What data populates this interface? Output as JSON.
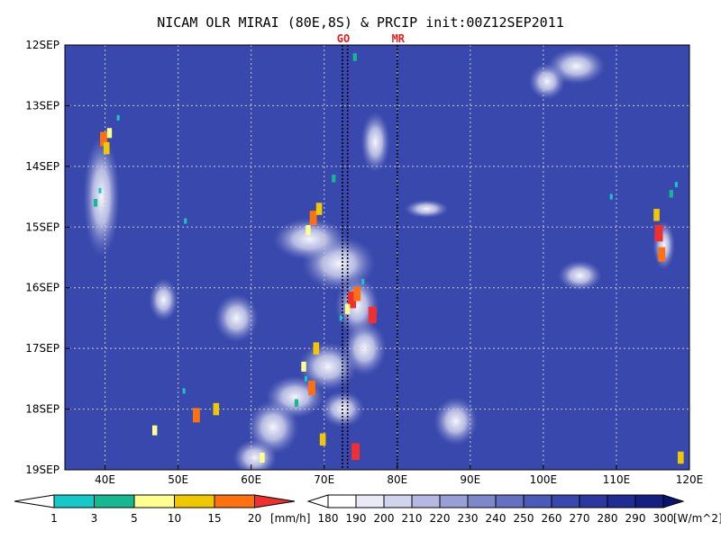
{
  "chart_data": {
    "type": "heatmap",
    "title": "NICAM OLR MIRAI (80E,8S) & PRCIP init:00Z12SEP2011",
    "x_ticks": [
      "40E",
      "50E",
      "60E",
      "70E",
      "80E",
      "90E",
      "100E",
      "110E",
      "120E"
    ],
    "x_tick_values": [
      40,
      50,
      60,
      70,
      80,
      90,
      100,
      110,
      120
    ],
    "xlim": [
      34.5,
      120
    ],
    "y_ticks": [
      "12SEP",
      "13SEP",
      "14SEP",
      "15SEP",
      "16SEP",
      "17SEP",
      "18SEP",
      "19SEP"
    ],
    "y_tick_values": [
      0,
      1,
      2,
      3,
      4,
      5,
      6,
      7
    ],
    "ylim": [
      0,
      7
    ],
    "grid": true,
    "markers": [
      {
        "label": "GO",
        "lon": 72.5
      },
      {
        "label": "",
        "lon": 73.2
      },
      {
        "label": "MR",
        "lon": 80.0
      }
    ],
    "precip_colorbar": {
      "labels": [
        "1",
        "3",
        "5",
        "10",
        "15",
        "20"
      ],
      "unit": "[mm/h]",
      "colors": [
        "#16c8c8",
        "#16b890",
        "#ffff90",
        "#f0c800",
        "#ff7010",
        "#f03030"
      ]
    },
    "olr_colorbar": {
      "labels": [
        "180",
        "190",
        "200",
        "210",
        "220",
        "230",
        "240",
        "250",
        "260",
        "270",
        "280",
        "290",
        "300"
      ],
      "unit": "[W/m^2]",
      "colors": [
        "#ffffff",
        "#eaeaf6",
        "#d2d4ee",
        "#b4b8e2",
        "#989ed6",
        "#7e86cc",
        "#6470c2",
        "#4a5ab8",
        "#3848ac",
        "#2a38a0",
        "#1e2c94",
        "#141f82",
        "#0a1470"
      ]
    },
    "clouds": [
      {
        "lon": 72.0,
        "day": 3.6,
        "rx": 5,
        "ry": 0.45
      },
      {
        "lon": 68.0,
        "day": 3.2,
        "rx": 5,
        "ry": 0.35
      },
      {
        "lon": 74.5,
        "day": 4.3,
        "rx": 3,
        "ry": 0.5
      },
      {
        "lon": 75.5,
        "day": 5.0,
        "rx": 3,
        "ry": 0.45
      },
      {
        "lon": 70.5,
        "day": 5.3,
        "rx": 4,
        "ry": 0.4
      },
      {
        "lon": 66.0,
        "day": 5.8,
        "rx": 4,
        "ry": 0.35
      },
      {
        "lon": 63.0,
        "day": 6.3,
        "rx": 3.5,
        "ry": 0.45
      },
      {
        "lon": 60.5,
        "day": 6.8,
        "rx": 3,
        "ry": 0.3
      },
      {
        "lon": 72.5,
        "day": 6.0,
        "rx": 3,
        "ry": 0.3
      },
      {
        "lon": 84.0,
        "day": 2.7,
        "rx": 3,
        "ry": 0.15
      },
      {
        "lon": 104.5,
        "day": 0.35,
        "rx": 4,
        "ry": 0.3
      },
      {
        "lon": 100.5,
        "day": 0.6,
        "rx": 2.5,
        "ry": 0.3
      },
      {
        "lon": 77.0,
        "day": 1.6,
        "rx": 2,
        "ry": 0.5
      },
      {
        "lon": 58.0,
        "day": 4.5,
        "rx": 3,
        "ry": 0.4
      },
      {
        "lon": 48.0,
        "day": 4.2,
        "rx": 2,
        "ry": 0.35
      },
      {
        "lon": 88.0,
        "day": 6.2,
        "rx": 3,
        "ry": 0.4
      },
      {
        "lon": 39.5,
        "day": 2.5,
        "rx": 2.5,
        "ry": 1.0
      },
      {
        "lon": 105.0,
        "day": 3.8,
        "rx": 3,
        "ry": 0.25
      },
      {
        "lon": 116.5,
        "day": 3.3,
        "rx": 1.5,
        "ry": 0.4
      }
    ],
    "precip": [
      {
        "lon": 39.8,
        "day": 1.55,
        "level": 4
      },
      {
        "lon": 40.2,
        "day": 1.7,
        "level": 3
      },
      {
        "lon": 40.6,
        "day": 1.45,
        "level": 2
      },
      {
        "lon": 41.8,
        "day": 1.2,
        "level": 0
      },
      {
        "lon": 39.3,
        "day": 2.4,
        "level": 0
      },
      {
        "lon": 38.7,
        "day": 2.6,
        "level": 1
      },
      {
        "lon": 51.0,
        "day": 2.9,
        "level": 0
      },
      {
        "lon": 68.5,
        "day": 2.85,
        "level": 4
      },
      {
        "lon": 69.3,
        "day": 2.7,
        "level": 3
      },
      {
        "lon": 67.8,
        "day": 3.05,
        "level": 2
      },
      {
        "lon": 71.3,
        "day": 2.2,
        "level": 1
      },
      {
        "lon": 73.8,
        "day": 4.2,
        "level": 5
      },
      {
        "lon": 74.5,
        "day": 4.1,
        "level": 4
      },
      {
        "lon": 73.2,
        "day": 4.35,
        "level": 2
      },
      {
        "lon": 72.3,
        "day": 4.5,
        "level": 0
      },
      {
        "lon": 76.6,
        "day": 4.45,
        "level": 5
      },
      {
        "lon": 75.3,
        "day": 3.9,
        "level": 0
      },
      {
        "lon": 67.2,
        "day": 5.3,
        "level": 2
      },
      {
        "lon": 68.3,
        "day": 5.65,
        "level": 4
      },
      {
        "lon": 68.9,
        "day": 5.0,
        "level": 3
      },
      {
        "lon": 66.2,
        "day": 5.9,
        "level": 1
      },
      {
        "lon": 67.5,
        "day": 5.5,
        "level": 0
      },
      {
        "lon": 55.2,
        "day": 6.0,
        "level": 3
      },
      {
        "lon": 52.5,
        "day": 6.1,
        "level": 4
      },
      {
        "lon": 50.8,
        "day": 5.7,
        "level": 0
      },
      {
        "lon": 46.8,
        "day": 6.35,
        "level": 2
      },
      {
        "lon": 69.8,
        "day": 6.5,
        "level": 3
      },
      {
        "lon": 74.3,
        "day": 6.7,
        "level": 5
      },
      {
        "lon": 61.5,
        "day": 6.8,
        "level": 2
      },
      {
        "lon": 115.8,
        "day": 3.1,
        "level": 5
      },
      {
        "lon": 116.2,
        "day": 3.45,
        "level": 4
      },
      {
        "lon": 115.5,
        "day": 2.8,
        "level": 3
      },
      {
        "lon": 118.2,
        "day": 2.3,
        "level": 0
      },
      {
        "lon": 117.5,
        "day": 2.45,
        "level": 1
      },
      {
        "lon": 118.8,
        "day": 6.8,
        "level": 3
      },
      {
        "lon": 109.3,
        "day": 2.5,
        "level": 0
      },
      {
        "lon": 74.2,
        "day": 0.2,
        "level": 1
      }
    ]
  }
}
